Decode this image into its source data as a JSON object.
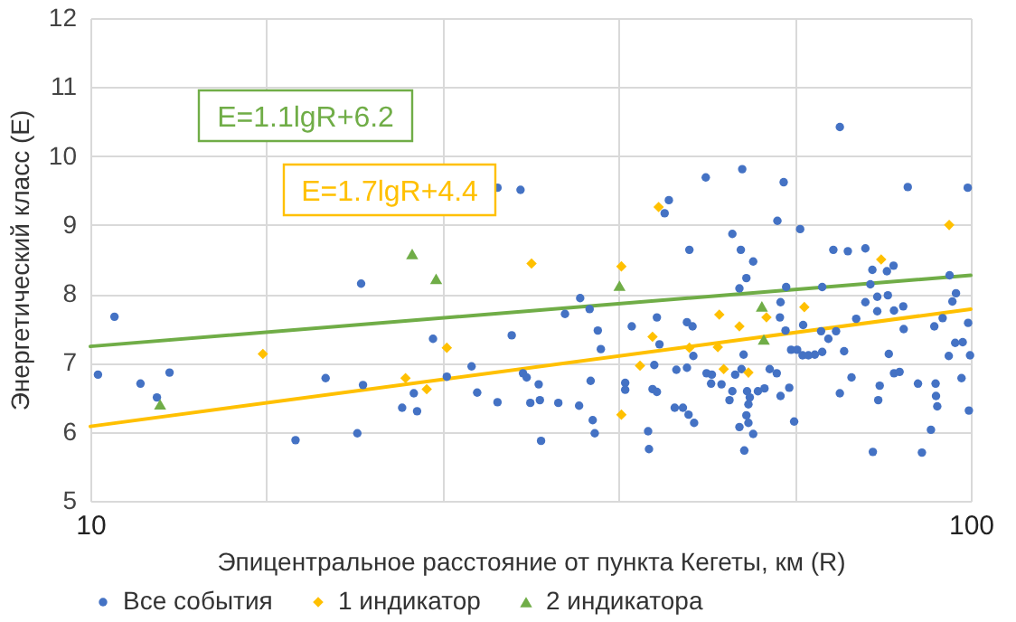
{
  "chart_data": {
    "type": "scatter",
    "xlabel": "Эпицентральное расстояние от пункта Кегеты, км (R)",
    "ylabel": "Энергетический класс (E)",
    "log": "x",
    "xlim": [
      10,
      100
    ],
    "ylim": [
      5,
      12
    ],
    "xticks": [
      10,
      {
        "value": 15.85,
        "label": null
      },
      {
        "value": 25.12,
        "label": null
      },
      {
        "value": 39.81,
        "label": null
      },
      {
        "value": 63.1,
        "label": null
      },
      100
    ],
    "yticks": [
      5,
      6,
      7,
      8,
      9,
      10,
      11,
      12
    ],
    "grid": true,
    "legend": "bottom",
    "annotations": [
      "E=1.1lgR+6.2",
      "E=1.7lgR+4.4"
    ],
    "series": [
      {
        "name": "Все события",
        "color": "#4472c4",
        "marker": "circle",
        "x": [
          10.2,
          10.65,
          11.4,
          11.9,
          12.3,
          17.1,
          18.5,
          20.1,
          20.3,
          20.4,
          22.6,
          23.3,
          23.5,
          24.5,
          25.4,
          27.1,
          27.5,
          29.0,
          29.0,
          30.8,
          30.1,
          31.0,
          31.3,
          31.6,
          71.0,
          50.0,
          55.0,
          61.3,
          84.8,
          99.2,
          45.4,
          44.9,
          60.3,
          64.0,
          53.6,
          54.8,
          56.6,
          47.9,
          69.8,
          72.5,
          75.9,
          77.3,
          80.3,
          81.7,
          55.6,
          54.6,
          61.7,
          67.8,
          36.0,
          36.9,
          34.6,
          37.7,
          38.0,
          41.2,
          44.0,
          44.3,
          47.6,
          48.3,
          48.4,
          47.6,
          46.3,
          43.7,
          43.5,
          44.0,
          46.1,
          47.1,
          47.8,
          48.5,
          43.0,
          43.1,
          40.5,
          40.5,
          37.0,
          35.9,
          37.2,
          37.4,
          32.5,
          32.4,
          32.3,
          50.1,
          50.8,
          50.7,
          52.1,
          53.2,
          53.6,
          54.0,
          54.9,
          55.2,
          55.7,
          56.1,
          55.9,
          55.6,
          55.9,
          54.6,
          56.6,
          55.3,
          57.3,
          58.3,
          59.1,
          60.2,
          60.8,
          62.2,
          63.0,
          62.5,
          63.5,
          64.4,
          65.4,
          66.5,
          67.8,
          61.6,
          60.7,
          60.8,
          64.5,
          67.6,
          68.9,
          70.3,
          71.8,
          73.2,
          71.0,
          74.1,
          75.9,
          76.9,
          78.3,
          80.5,
          83.8,
          81.8,
          78.3,
          80.7,
          81.8,
          78.8,
          78.5,
          77.4,
          83.0,
          87.1,
          91.2,
          91.3,
          91.6,
          90.1,
          88.0,
          83.9,
          90.9,
          92.9,
          94.4,
          96.0,
          97.9,
          99.3,
          99.8,
          99.5,
          97.6,
          95.3,
          96.2,
          94.6,
          34.0
        ],
        "values": [
          6.83,
          7.67,
          6.7,
          6.5,
          6.86,
          5.88,
          6.78,
          5.98,
          8.15,
          6.68,
          6.35,
          6.56,
          6.3,
          7.35,
          6.8,
          6.95,
          6.57,
          6.43,
          9.54,
          9.51,
          7.4,
          6.85,
          6.79,
          6.42,
          10.42,
          9.69,
          9.81,
          9.62,
          9.55,
          9.54,
          9.36,
          9.17,
          9.06,
          8.94,
          8.87,
          8.64,
          8.47,
          8.64,
          8.64,
          8.62,
          8.66,
          8.35,
          8.33,
          8.41,
          8.23,
          8.08,
          8.1,
          8.1,
          7.94,
          7.78,
          7.71,
          7.47,
          7.2,
          7.53,
          7.66,
          7.27,
          7.59,
          7.53,
          7.1,
          6.93,
          6.9,
          6.97,
          6.62,
          6.58,
          6.35,
          6.35,
          6.25,
          6.13,
          6.01,
          5.75,
          6.71,
          6.61,
          6.74,
          6.38,
          6.17,
          5.98,
          5.87,
          6.46,
          6.69,
          6.85,
          6.83,
          6.7,
          6.69,
          6.46,
          6.59,
          6.83,
          6.91,
          7.12,
          6.59,
          6.5,
          6.4,
          6.24,
          6.13,
          6.07,
          5.97,
          5.73,
          6.59,
          6.63,
          6.91,
          6.85,
          6.52,
          6.64,
          6.15,
          7.19,
          7.19,
          7.11,
          7.11,
          7.12,
          7.16,
          7.47,
          7.66,
          7.88,
          7.55,
          7.46,
          7.35,
          7.46,
          7.17,
          6.79,
          6.56,
          7.64,
          7.88,
          8.14,
          7.96,
          7.98,
          7.82,
          7.76,
          7.75,
          7.13,
          6.85,
          6.67,
          6.46,
          5.71,
          6.87,
          6.7,
          6.7,
          6.52,
          6.37,
          6.03,
          5.7,
          7.49,
          7.53,
          7.65,
          7.1,
          7.29,
          7.3,
          7.58,
          7.11,
          6.31,
          6.78,
          7.89,
          8.01,
          8.27,
          6.42
        ]
      },
      {
        "name": "1 индикатор",
        "color": "#ffc000",
        "marker": "diamond",
        "x": [
          15.7,
          22.8,
          24.1,
          25.4,
          31.7,
          40.1,
          44.2,
          40.1,
          43.5,
          42.1,
          47.9,
          51.8,
          51.6,
          52.4,
          54.6,
          55.9,
          58.6,
          64.7,
          79.1,
          94.5
        ],
        "values": [
          7.13,
          6.78,
          6.62,
          7.22,
          8.44,
          8.4,
          9.26,
          6.25,
          7.38,
          6.96,
          7.22,
          7.7,
          7.23,
          6.91,
          7.53,
          6.86,
          7.66,
          7.81,
          8.5,
          9.0
        ]
      },
      {
        "name": "2 индикатора",
        "color": "#70ad47",
        "marker": "triangle",
        "x": [
          12.0,
          23.2,
          24.7,
          39.9,
          57.9,
          58.2
        ],
        "values": [
          6.4,
          8.58,
          8.22,
          8.12,
          7.82,
          7.34
        ]
      },
      {
        "type": "line",
        "color": "#70ad47",
        "x": [
          10,
          100
        ],
        "values": [
          7.24,
          8.27
        ]
      },
      {
        "type": "line",
        "color": "#ffc000",
        "x": [
          10,
          100
        ],
        "values": [
          6.08,
          7.78
        ]
      }
    ]
  }
}
